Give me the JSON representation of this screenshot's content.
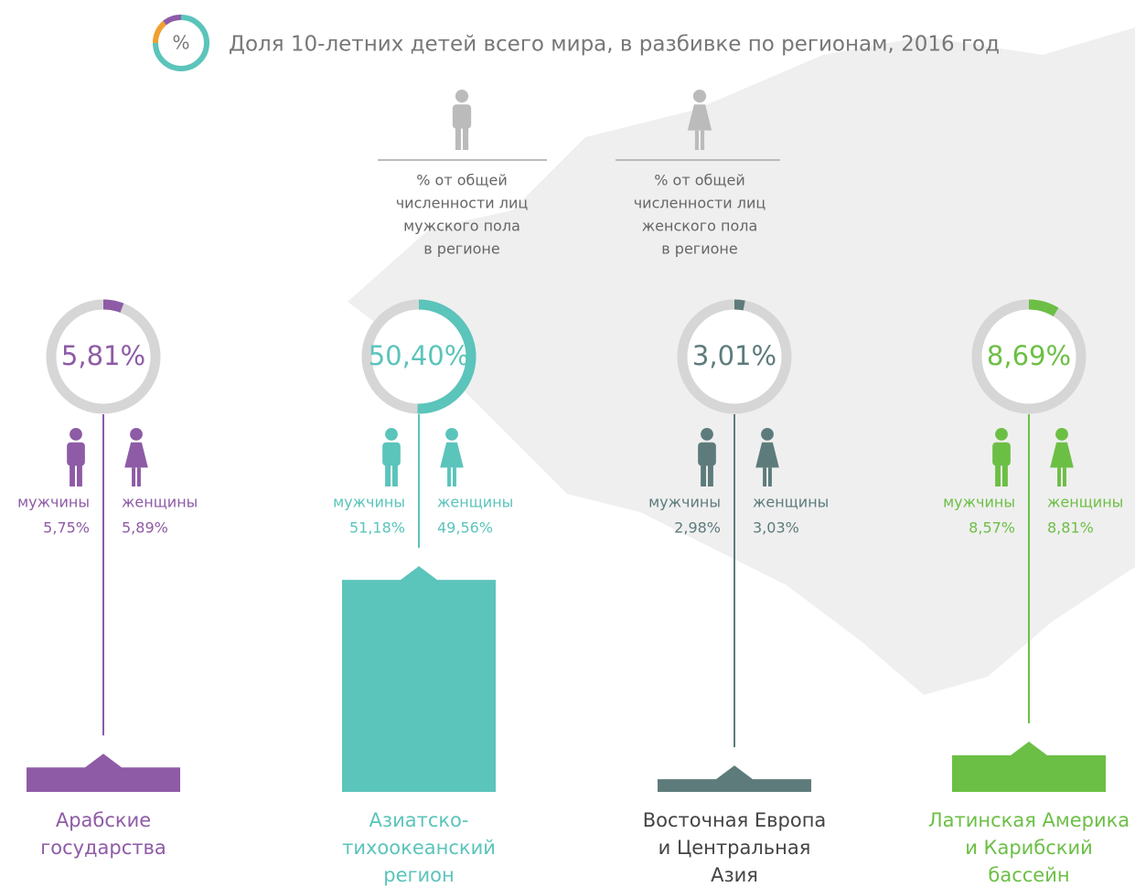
{
  "chart_data": {
    "type": "infographic",
    "icon_label": "%",
    "title": "Доля 10-летних детей всего мира, в разбивке по регионам, 2016 год",
    "legend": {
      "male_lines": [
        "% от общей",
        "численности лиц",
        "мужского пола",
        "в регионе"
      ],
      "female_lines": [
        "% от общей",
        "численности лиц",
        "женского пола",
        "в регионе"
      ]
    },
    "male_label": "мужчины",
    "female_label": "женщины",
    "categories": [
      [
        "Арабские",
        "государства"
      ],
      [
        "Азиатско-",
        "тихоокеанский",
        "регион"
      ],
      [
        "Восточная Европа",
        "и Центральная",
        "Азия"
      ],
      [
        "Латинская Америка",
        "и Карибский",
        "бассейн"
      ]
    ],
    "colors": [
      "#8e5ba6",
      "#5bc4bb",
      "#5e7b7b",
      "#6cbf45"
    ],
    "values": [
      5.81,
      50.4,
      3.01,
      8.69
    ],
    "value_labels": [
      "5,81%",
      "50,40%",
      "3,01%",
      "8,69%"
    ],
    "male_value_labels": [
      "5,75%",
      "51,18%",
      "2,98%",
      "8,57%"
    ],
    "female_value_labels": [
      "5,89%",
      "49,56%",
      "3,03%",
      "8,81%"
    ]
  }
}
